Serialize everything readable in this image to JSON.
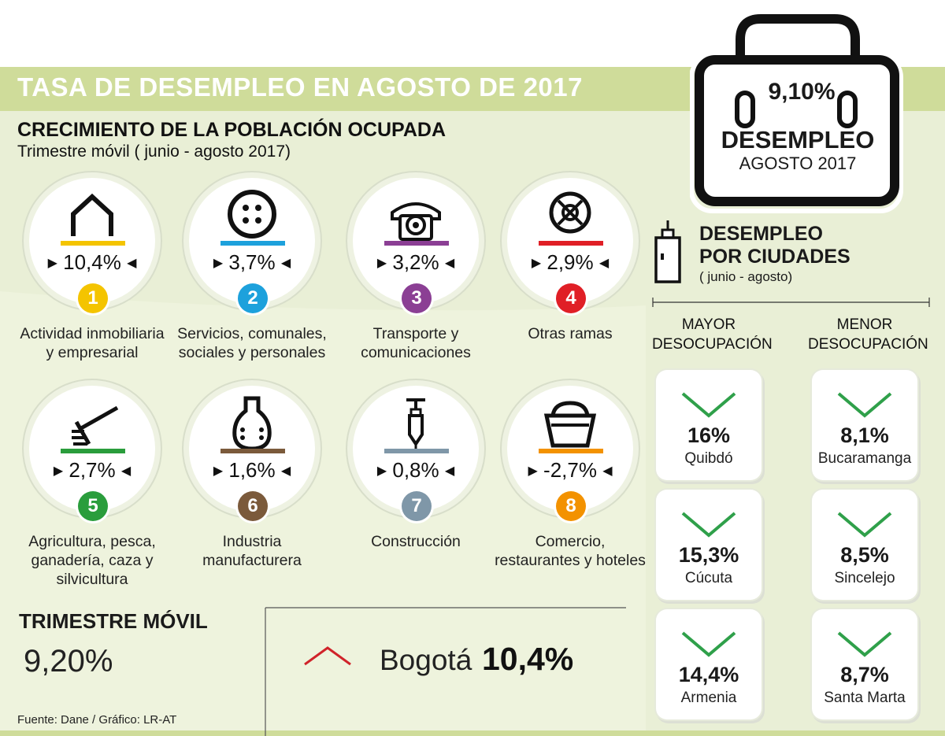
{
  "header": {
    "title": "TASA DE DESEMPLEO EN AGOSTO DE 2017",
    "section_title": "CRECIMIENTO DE LA POBLACIÓN OCUPADA",
    "section_subtitle": "Trimestre móvil ( junio - agosto 2017)"
  },
  "briefcase": {
    "rate": "9,10%",
    "label": "DESEMPLEO",
    "period": "AGOSTO 2017"
  },
  "sectors": [
    {
      "number": "1",
      "value": "10,4%",
      "label_lines": [
        "Actividad inmobiliaria",
        "y empresarial"
      ],
      "color": "#f4c400",
      "icon": "house-icon"
    },
    {
      "number": "2",
      "value": "3,7%",
      "label_lines": [
        "Servicios, comunales,",
        "sociales y personales"
      ],
      "color": "#1da1dc",
      "icon": "button-icon"
    },
    {
      "number": "3",
      "value": "3,2%",
      "label_lines": [
        "Transporte y",
        "comunicaciones"
      ],
      "color": "#8b3f94",
      "icon": "telephone-icon"
    },
    {
      "number": "4",
      "value": "2,9%",
      "label_lines": [
        "Otras ramas"
      ],
      "color": "#e01f26",
      "icon": "steering-wheel-icon"
    },
    {
      "number": "5",
      "value": "2,7%",
      "label_lines": [
        "Agricultura, pesca,",
        "ganadería, caza y",
        "silvicultura"
      ],
      "color": "#2a9d3c",
      "icon": "rake-icon"
    },
    {
      "number": "6",
      "value": "1,6%",
      "label_lines": [
        "Industria",
        "manufacturera"
      ],
      "color": "#7b5a3b",
      "icon": "flask-icon"
    },
    {
      "number": "7",
      "value": "0,8%",
      "label_lines": [
        "Construcción"
      ],
      "color": "#7f97a8",
      "icon": "plumb-bob-icon"
    },
    {
      "number": "8",
      "value": "-2,7%",
      "label_lines": [
        "Comercio,",
        "restaurantes y hoteles"
      ],
      "color": "#f39200",
      "icon": "basket-icon"
    }
  ],
  "cities": {
    "title_lines": [
      "DESEMPLEO",
      "POR CIUDADES"
    ],
    "subtitle": "( junio - agosto)",
    "highest_header": [
      "MAYOR",
      "DESOCUPACIÓN"
    ],
    "lowest_header": [
      "MENOR",
      "DESOCUPACIÓN"
    ],
    "highest": [
      {
        "value": "16%",
        "city": "Quibdó"
      },
      {
        "value": "15,3%",
        "city": "Cúcuta"
      },
      {
        "value": "14,4%",
        "city": "Armenia"
      }
    ],
    "lowest": [
      {
        "value": "8,1%",
        "city": "Bucaramanga"
      },
      {
        "value": "8,5%",
        "city": "Sincelejo"
      },
      {
        "value": "8,7%",
        "city": "Santa Marta"
      }
    ]
  },
  "trimestre": {
    "title": "TRIMESTRE MÓVIL",
    "value": "9,20%"
  },
  "bogota": {
    "name": "Bogotá",
    "value": "10,4%"
  },
  "source": "Fuente: Dane / Gráfico: LR-AT",
  "colors": {
    "band": "#cfdc9a",
    "panel": "#e9efd6",
    "chevron_green": "#2fa04a",
    "chevron_red": "#d0232a"
  }
}
